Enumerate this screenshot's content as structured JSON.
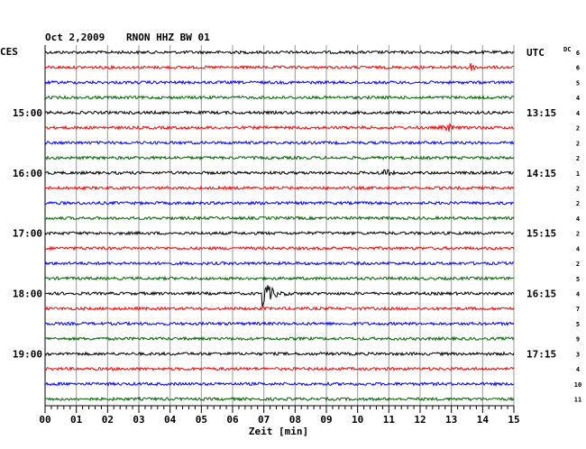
{
  "header": {
    "date": "Oct 2,2009",
    "station": "RNON HHZ BW 01",
    "left_zone": "CES",
    "right_zone": "UTC",
    "dc_label": "DC"
  },
  "chart_data": {
    "type": "line",
    "title": "Oct 2,2009   RNON HHZ BW 01",
    "xlabel": "Zeit [min]",
    "xlim": [
      0,
      15
    ],
    "x_ticks": [
      "00",
      "01",
      "02",
      "03",
      "04",
      "05",
      "06",
      "07",
      "08",
      "09",
      "10",
      "11",
      "12",
      "13",
      "14",
      "15"
    ],
    "left_time_labels": [
      {
        "row": 4,
        "label": "15:00"
      },
      {
        "row": 8,
        "label": "16:00"
      },
      {
        "row": 12,
        "label": "17:00"
      },
      {
        "row": 16,
        "label": "18:00"
      },
      {
        "row": 20,
        "label": "19:00"
      }
    ],
    "right_time_labels": [
      {
        "row": 0,
        "label": "UTC"
      },
      {
        "row": 4,
        "label": "13:15"
      },
      {
        "row": 8,
        "label": "14:15"
      },
      {
        "row": 12,
        "label": "15:15"
      },
      {
        "row": 16,
        "label": "16:15"
      },
      {
        "row": 20,
        "label": "17:15"
      }
    ],
    "dc_values": [
      "6",
      "6",
      "5",
      "4",
      "4",
      "2",
      "2",
      "2",
      "1",
      "2",
      "2",
      "4",
      "2",
      "4",
      "2",
      "5",
      "4",
      "7",
      "5",
      "9",
      "3",
      "4",
      "10",
      "11"
    ],
    "trace_colors": [
      "#000000",
      "#ff0000",
      "#0000ff",
      "#006400"
    ],
    "events": [
      {
        "row": 1,
        "minute": 13.6,
        "amplitude": "small"
      },
      {
        "row": 5,
        "minute": 12.9,
        "amplitude": "small"
      },
      {
        "row": 8,
        "minute": 10.9,
        "amplitude": "small"
      },
      {
        "row": 16,
        "minute": 7.0,
        "amplitude": "large"
      }
    ],
    "rows": 24
  }
}
